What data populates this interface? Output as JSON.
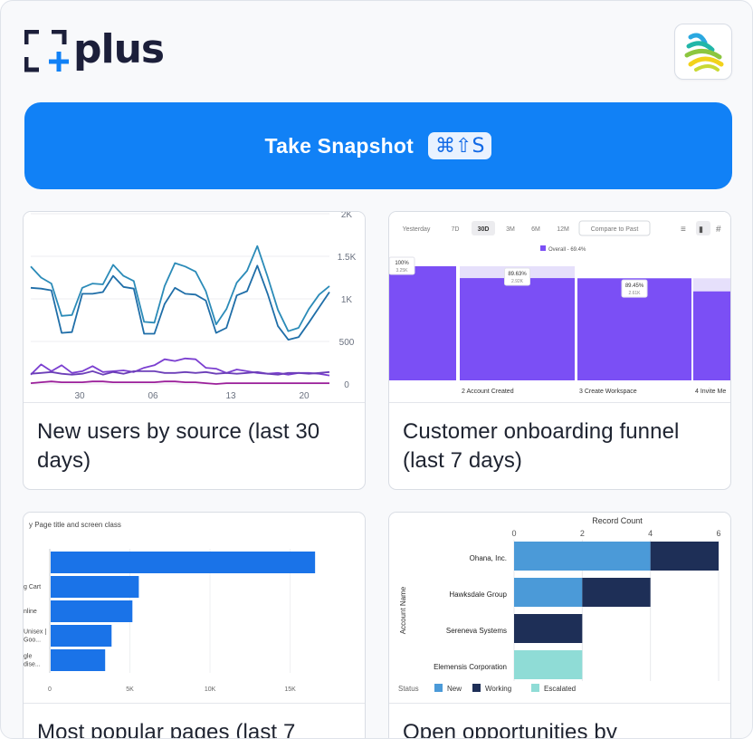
{
  "header": {
    "logo_text": "plus",
    "app_icon": "colorful-swirl-logo-icon"
  },
  "snapshot": {
    "label": "Take Snapshot",
    "shortcut": "⌘⇧S"
  },
  "cards": [
    {
      "title": "New users by source (last 30 days)"
    },
    {
      "title": "Customer onboarding funnel (last 7 days)"
    },
    {
      "title": "Most popular pages (last 7"
    },
    {
      "title": "Open opportunities by"
    }
  ],
  "colors": {
    "primary_button": "#1181f6",
    "funnel_purple": "#7b4ff5",
    "ga_blue": "#1a73e8",
    "sf_new": "#4b9ad8",
    "sf_working": "#1e2f57",
    "sf_escalated": "#8fdcd6"
  },
  "chart_data": [
    {
      "type": "line",
      "title": "",
      "x_ticks": [
        "30",
        "06",
        "13",
        "20"
      ],
      "y_ticks": [
        "0",
        "500",
        "1K",
        "1.5K",
        "2K"
      ],
      "ylim": [
        0,
        2000
      ],
      "grid": true,
      "series": [
        {
          "values": [
            1380,
            1250,
            1180,
            800,
            810,
            1130,
            1180,
            1170,
            1400,
            1270,
            1210,
            730,
            720,
            1150,
            1420,
            1380,
            1320,
            1090,
            700,
            880,
            1190,
            1330,
            1620,
            1260,
            870,
            620,
            660,
            880,
            1050,
            1150
          ]
        },
        {
          "values": [
            1130,
            1120,
            1100,
            600,
            610,
            1060,
            1060,
            1080,
            1270,
            1140,
            1120,
            590,
            590,
            940,
            1130,
            1060,
            1050,
            980,
            600,
            660,
            1040,
            1090,
            1390,
            1060,
            680,
            520,
            550,
            720,
            900,
            1080
          ]
        },
        {
          "values": [
            110,
            230,
            150,
            220,
            130,
            150,
            210,
            140,
            150,
            160,
            140,
            190,
            220,
            290,
            270,
            300,
            290,
            190,
            180,
            130,
            170,
            150,
            130,
            120,
            130,
            110,
            130,
            130,
            120,
            100
          ]
        },
        {
          "values": [
            120,
            130,
            140,
            120,
            110,
            120,
            150,
            110,
            140,
            120,
            150,
            150,
            150,
            130,
            130,
            140,
            130,
            140,
            120,
            130,
            120,
            130,
            140,
            120,
            110,
            130,
            130,
            120,
            130,
            140
          ]
        },
        {
          "values": [
            10,
            20,
            30,
            20,
            20,
            20,
            30,
            30,
            20,
            20,
            20,
            20,
            20,
            30,
            30,
            20,
            20,
            10,
            0,
            10,
            10,
            10,
            10,
            10,
            10,
            10,
            10,
            10,
            10,
            10
          ]
        }
      ]
    },
    {
      "type": "bar",
      "toolbar": [
        "Yesterday",
        "7D",
        "30D",
        "3M",
        "6M",
        "12M",
        "Compare to Past"
      ],
      "selected_range": "30D",
      "legend": "Overall - 69.4%",
      "categories": [
        "",
        "2 Account Created",
        "3 Create Workspace",
        "4 Invite Me"
      ],
      "values": [
        100,
        89.63,
        89.45,
        78.0
      ],
      "value_labels": [
        "100%",
        "89.63%",
        "89.45%",
        ""
      ],
      "count_labels": [
        "3.25K",
        "2.92K",
        "2.61K",
        ""
      ]
    },
    {
      "type": "bar",
      "orientation": "horizontal",
      "title": "y Page title and screen class",
      "categories": [
        "",
        "g Cart",
        "nline",
        "Unisex | Goo...",
        "gle dise..."
      ],
      "values": [
        16500,
        5500,
        5100,
        3800,
        3400
      ],
      "x_ticks": [
        "0",
        "5K",
        "10K",
        "15K"
      ],
      "xlim": [
        0,
        17000
      ]
    },
    {
      "type": "bar",
      "orientation": "horizontal",
      "stacked": true,
      "title": "Record Count",
      "ylabel": "Account Name",
      "x_ticks": [
        "0",
        "2",
        "4",
        "6"
      ],
      "xlim": [
        0,
        6
      ],
      "categories": [
        "Ohana, Inc.",
        "Hawksdale Group",
        "Sereneva Systems",
        "Elemensis Corporation"
      ],
      "series": [
        {
          "name": "New",
          "values": [
            4,
            2,
            0,
            0
          ]
        },
        {
          "name": "Working",
          "values": [
            2,
            2,
            2,
            0
          ]
        },
        {
          "name": "Escalated",
          "values": [
            0,
            0,
            0,
            2
          ]
        }
      ],
      "legend_title": "Status"
    }
  ]
}
